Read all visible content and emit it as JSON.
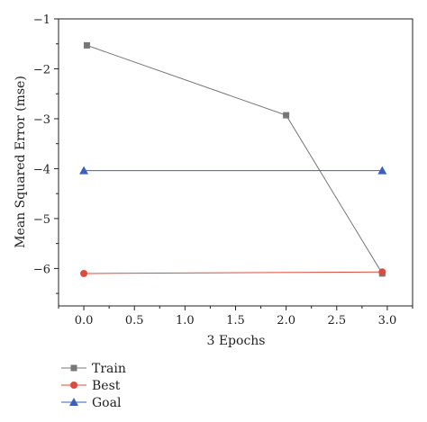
{
  "chart_data": {
    "type": "line",
    "xlabel": "3 Epochs",
    "ylabel": "Mean Squared Error (mse)",
    "xlim": [
      -0.25,
      3.25
    ],
    "ylim": [
      -6.75,
      -1
    ],
    "x_ticks": [
      0.0,
      0.5,
      1.0,
      1.5,
      2.0,
      2.5,
      3.0
    ],
    "x_tick_labels": [
      "0.0",
      "0.5",
      "1.0",
      "1.5",
      "2.0",
      "2.5",
      "3.0"
    ],
    "y_ticks": [
      -1,
      -2,
      -3,
      -4,
      -5,
      -6
    ],
    "y_tick_labels": [
      "−1",
      "−2",
      "−3",
      "−4",
      "−5",
      "−6"
    ],
    "grid": false,
    "legend_position": "bottom-left",
    "series": [
      {
        "name": "Train",
        "color": "#777777",
        "marker": "square",
        "x": [
          0.03,
          2.0,
          2.95
        ],
        "y": [
          -1.53,
          -2.93,
          -6.1
        ]
      },
      {
        "name": "Best",
        "color": "#e04a3a",
        "marker": "circle",
        "x": [
          0.0,
          2.95
        ],
        "y": [
          -6.1,
          -6.07
        ]
      },
      {
        "name": "Goal",
        "color": "#3a5fbf",
        "marker": "triangle",
        "x": [
          0.0,
          2.95
        ],
        "y": [
          -4.04,
          -4.04
        ]
      }
    ]
  }
}
